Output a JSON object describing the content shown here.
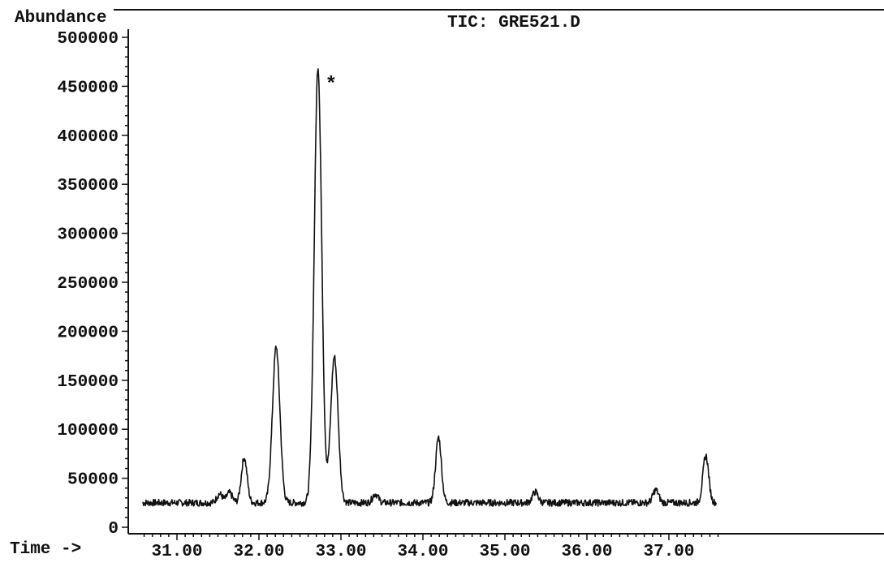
{
  "chart_data": {
    "type": "line",
    "title": "TIC: GRE521.D",
    "ylabel": "Abundance",
    "xlabel": "Time ->",
    "xlim": [
      30.58,
      37.58
    ],
    "ylim": [
      0,
      500000
    ],
    "x_ticks": [
      "31.00",
      "32.00",
      "33.00",
      "34.00",
      "35.00",
      "36.00",
      "37.00"
    ],
    "y_ticks": [
      "0",
      "50000",
      "100000",
      "150000",
      "200000",
      "250000",
      "300000",
      "350000",
      "400000",
      "450000",
      "500000"
    ],
    "baseline": 25000,
    "annotation": {
      "text": "*",
      "x": 32.88,
      "y": 455000
    },
    "peaks": [
      {
        "x": 31.52,
        "y": 34000
      },
      {
        "x": 31.64,
        "y": 35000
      },
      {
        "x": 31.82,
        "y": 71000
      },
      {
        "x": 32.21,
        "y": 184000
      },
      {
        "x": 32.72,
        "y": 470000
      },
      {
        "x": 32.92,
        "y": 174000
      },
      {
        "x": 33.42,
        "y": 34000
      },
      {
        "x": 34.19,
        "y": 92000
      },
      {
        "x": 35.37,
        "y": 36000
      },
      {
        "x": 36.84,
        "y": 38000
      },
      {
        "x": 37.45,
        "y": 73000
      }
    ]
  }
}
